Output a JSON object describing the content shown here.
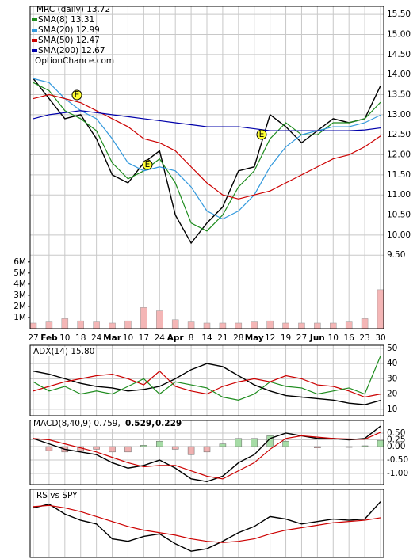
{
  "chart_data": [
    {
      "type": "line",
      "title": "MRC (daily) 13.72",
      "watermark": "OptionChance.com",
      "categories": [
        "27",
        "Feb",
        "10",
        "18",
        "24",
        "Mar",
        "10",
        "17",
        "24",
        "Apr",
        "8",
        "14",
        "21",
        "28",
        "May",
        "12",
        "19",
        "27",
        "Jun",
        "10",
        "16",
        "23",
        "30"
      ],
      "ylim": [
        7.67,
        15.7
      ],
      "yticks": [
        {
          "value": 9.5,
          "label": "9.50"
        },
        {
          "value": 10,
          "label": "10.00"
        },
        {
          "value": 10.5,
          "label": "10.50"
        },
        {
          "value": 11,
          "label": "11.00"
        },
        {
          "value": 11.5,
          "label": "11.50"
        },
        {
          "value": 12,
          "label": "12.00"
        },
        {
          "value": 12.5,
          "label": "12.50"
        },
        {
          "value": 13,
          "label": "13.00"
        },
        {
          "value": 13.5,
          "label": "13.50"
        },
        {
          "value": 14,
          "label": "14.00"
        },
        {
          "value": 14.5,
          "label": "14.50"
        },
        {
          "value": 15,
          "label": "15.00"
        },
        {
          "value": 15.5,
          "label": "15.50"
        }
      ],
      "grid": true,
      "annotations": [
        "E",
        "E",
        "E"
      ],
      "series": [
        {
          "color": "#000000",
          "values": [
            13.9,
            13.4,
            12.9,
            13.0,
            12.4,
            11.5,
            11.3,
            11.8,
            12.1,
            10.5,
            9.8,
            10.3,
            10.7,
            11.6,
            11.7,
            13.0,
            12.7,
            12.3,
            12.6,
            12.9,
            12.8,
            12.9,
            13.72
          ]
        },
        {
          "name": "SMA(8) 13.31",
          "color": "#1e8c1e",
          "values": [
            13.8,
            13.6,
            13.1,
            12.9,
            12.6,
            11.8,
            11.4,
            11.6,
            11.9,
            11.3,
            10.3,
            10.1,
            10.5,
            11.2,
            11.6,
            12.4,
            12.8,
            12.5,
            12.5,
            12.8,
            12.8,
            12.9,
            13.31
          ]
        },
        {
          "name": "SMA(20) 12.99",
          "color": "#3399dd",
          "values": [
            13.9,
            13.8,
            13.4,
            13.1,
            12.9,
            12.4,
            11.8,
            11.6,
            11.7,
            11.6,
            11.2,
            10.6,
            10.4,
            10.6,
            11.0,
            11.7,
            12.2,
            12.5,
            12.6,
            12.7,
            12.7,
            12.8,
            12.99
          ]
        },
        {
          "name": "SMA(50) 12.47",
          "color": "#cc0000",
          "values": [
            13.4,
            13.5,
            13.4,
            13.3,
            13.1,
            12.9,
            12.7,
            12.4,
            12.3,
            12.1,
            11.7,
            11.3,
            11.0,
            10.9,
            11.0,
            11.1,
            11.3,
            11.5,
            11.7,
            11.9,
            12.0,
            12.2,
            12.47
          ]
        },
        {
          "name": "SMA(200) 12.67",
          "color": "#0000aa",
          "values": [
            12.9,
            13.0,
            13.05,
            13.1,
            13.05,
            13.0,
            12.95,
            12.9,
            12.85,
            12.8,
            12.75,
            12.7,
            12.7,
            12.7,
            12.65,
            12.6,
            12.6,
            12.6,
            12.6,
            12.6,
            12.6,
            12.62,
            12.67
          ]
        }
      ],
      "volume": {
        "color": "#f4b6b6",
        "y2lim": [
          0,
          29000000
        ],
        "y2ticks": [
          {
            "value": 1000000,
            "label": "1M"
          },
          {
            "value": 2000000,
            "label": "2M"
          },
          {
            "value": 3000000,
            "label": "3M"
          },
          {
            "value": 4000000,
            "label": "4M"
          },
          {
            "value": 5000000,
            "label": "5M"
          },
          {
            "value": 6000000,
            "label": "6M"
          }
        ],
        "values": [
          500000,
          600000,
          900000,
          700000,
          600000,
          500000,
          700000,
          1900000,
          1600000,
          800000,
          600000,
          500000,
          500000,
          500000,
          600000,
          700000,
          500000,
          500000,
          500000,
          500000,
          600000,
          900000,
          3500000
        ]
      }
    },
    {
      "type": "line",
      "title": "ADX(14) 15.80",
      "ylim": [
        5.8,
        52
      ],
      "yticks": [
        10,
        20,
        30,
        40,
        50
      ],
      "grid": true,
      "series": [
        {
          "color": "#000000",
          "values": [
            35,
            33,
            30,
            27,
            25,
            24,
            22,
            23,
            25,
            30,
            36,
            40,
            38,
            32,
            26,
            22,
            19,
            18,
            17,
            16,
            14,
            13,
            15.8
          ]
        },
        {
          "color": "#cc0000",
          "values": [
            22,
            25,
            28,
            30,
            32,
            33,
            30,
            26,
            35,
            25,
            22,
            20,
            25,
            28,
            30,
            28,
            32,
            30,
            26,
            25,
            22,
            18,
            20
          ]
        },
        {
          "color": "#1e8c1e",
          "values": [
            28,
            22,
            25,
            20,
            22,
            20,
            25,
            30,
            20,
            28,
            26,
            24,
            18,
            16,
            20,
            28,
            25,
            24,
            20,
            22,
            24,
            20,
            45
          ]
        }
      ]
    },
    {
      "type": "line",
      "title": "MACD(8,40,9) 0.759,",
      "signal_label": "0.529,",
      "hist_label": "0.229",
      "ylim": [
        -1.41,
        0.97
      ],
      "yticks": [
        {
          "value": -1,
          "label": "-1.00"
        },
        {
          "value": -0.5,
          "label": "-0.50"
        },
        {
          "value": 0,
          "label": "0.00"
        },
        {
          "value": 0.25,
          "label": "0.25"
        },
        {
          "value": 0.5,
          "label": "0.50"
        }
      ],
      "grid": true,
      "histogram": {
        "values": [
          0,
          -0.15,
          -0.2,
          -0.15,
          -0.1,
          -0.2,
          -0.2,
          0.05,
          0.2,
          -0.1,
          -0.3,
          -0.2,
          0.1,
          0.3,
          0.3,
          0.4,
          0.2,
          0,
          -0.05,
          0,
          -0.03,
          0.03,
          0.23
        ]
      },
      "series": [
        {
          "color": "#000000",
          "values": [
            0.3,
            0.1,
            -0.1,
            -0.2,
            -0.3,
            -0.6,
            -0.8,
            -0.7,
            -0.5,
            -0.8,
            -1.2,
            -1.3,
            -1.1,
            -0.6,
            -0.3,
            0.3,
            0.5,
            0.4,
            0.3,
            0.3,
            0.25,
            0.3,
            0.76
          ]
        },
        {
          "color": "#cc0000",
          "values": [
            0.3,
            0.25,
            0.1,
            -0.05,
            -0.2,
            -0.4,
            -0.6,
            -0.75,
            -0.7,
            -0.7,
            -0.9,
            -1.1,
            -1.2,
            -0.9,
            -0.6,
            -0.1,
            0.3,
            0.4,
            0.35,
            0.3,
            0.28,
            0.27,
            0.53
          ]
        }
      ]
    },
    {
      "type": "line",
      "title": "RS vs SPY",
      "ylim": [
        55,
        110
      ],
      "grid": true,
      "series": [
        {
          "color": "#000000",
          "values": [
            95,
            98,
            90,
            85,
            82,
            70,
            68,
            72,
            74,
            66,
            60,
            62,
            68,
            75,
            80,
            88,
            86,
            82,
            84,
            86,
            85,
            86,
            100
          ]
        },
        {
          "color": "#cc0000",
          "values": [
            96,
            97,
            95,
            92,
            88,
            84,
            80,
            77,
            75,
            73,
            70,
            68,
            67,
            68,
            70,
            74,
            77,
            79,
            81,
            83,
            84,
            85,
            87
          ]
        }
      ]
    }
  ]
}
